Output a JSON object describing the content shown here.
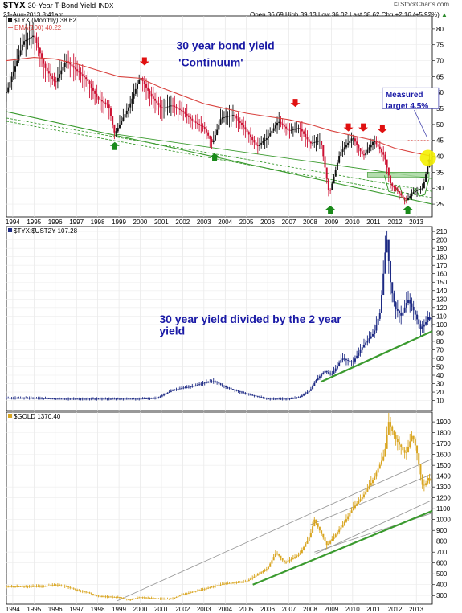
{
  "header": {
    "symbol": "$TYX",
    "name": "30-Year T-Bond Yield",
    "exchange": "INDX",
    "date": "21-Aug-2013 8:41am",
    "quote": "Open 36.69  High 39.13  Low 36.02  Last 38.62  Chg +2.16 (+5.92%)",
    "chg_arrow": "▲",
    "watermark": "© StockCharts.com"
  },
  "colors": {
    "tyx_up": "#111111",
    "tyx_down": "#cc1133",
    "ema": "#d9433f",
    "trend_green": "#3a9a2e",
    "ratio": "#1d2a84",
    "gold": "#d9a520",
    "channel": "#9a9a9a",
    "annotation": "#1a1aa6",
    "highlight": "#f4f000",
    "arrow_red": "#e01010",
    "arrow_green": "#1a8a1a"
  },
  "chart_data": [
    {
      "type": "line",
      "panel": "top",
      "title": "$TYX (Monthly) 38.62",
      "series": [
        {
          "name": "$TYX (Monthly) 38.62",
          "style": "ohlc-bars",
          "x": [
            1993.7,
            1994.5,
            1995.0,
            1995.5,
            1996.0,
            1996.5,
            1997.0,
            1997.5,
            1998.0,
            1998.5,
            1998.8,
            1999.5,
            2000.0,
            2000.5,
            2001.0,
            2001.5,
            2002.0,
            2002.5,
            2003.0,
            2003.4,
            2003.8,
            2004.4,
            2005.0,
            2005.5,
            2006.0,
            2006.5,
            2007.0,
            2007.5,
            2008.0,
            2008.5,
            2008.9,
            2009.4,
            2010.0,
            2010.5,
            2011.0,
            2011.5,
            2011.8,
            2012.0,
            2012.5,
            2012.9,
            2013.3,
            2013.6
          ],
          "values": [
            60,
            76,
            78,
            68,
            63,
            70,
            67,
            64,
            58,
            56,
            47,
            56,
            65,
            59,
            55,
            56,
            54,
            51,
            49,
            44,
            52,
            53,
            48,
            43,
            46,
            51,
            48,
            49,
            44,
            45,
            28,
            41,
            46,
            40,
            45,
            40,
            31,
            30,
            26,
            29,
            30,
            38.6
          ]
        },
        {
          "name": "EMA(100) 40.22",
          "x": [
            1993.7,
            1995.0,
            1996.0,
            1997.0,
            1998.0,
            1999.0,
            2000.0,
            2001.0,
            2002.0,
            2003.0,
            2004.0,
            2005.0,
            2006.0,
            2007.0,
            2008.0,
            2009.0,
            2010.0,
            2011.0,
            2012.0,
            2013.0,
            2013.6
          ],
          "values": [
            70,
            71,
            70.5,
            69,
            67,
            65,
            64.5,
            61.5,
            59,
            56.5,
            55,
            53.5,
            52.5,
            51.5,
            50,
            48,
            46.5,
            45,
            42.5,
            41,
            40.22
          ]
        }
      ],
      "ylim": [
        23,
        83
      ],
      "yticks": [
        25,
        30,
        35,
        40,
        45,
        50,
        55,
        60,
        65,
        70,
        75,
        80
      ],
      "annotations": [
        "30 year bond yield",
        "'Continuum'",
        "Measured",
        "target 4.5%"
      ]
    },
    {
      "type": "line",
      "panel": "middle",
      "title": "$TYX:$UST2Y 107.28",
      "series": [
        {
          "name": "$TYX:$UST2Y 107.28",
          "style": "ohlc-bars",
          "x": [
            1993.7,
            1995.0,
            1996.0,
            1997.0,
            1998.0,
            1999.0,
            2000.0,
            2000.8,
            2001.5,
            2002.0,
            2002.5,
            2003.0,
            2003.5,
            2004.0,
            2004.5,
            2005.0,
            2006.0,
            2007.0,
            2007.5,
            2008.0,
            2008.3,
            2008.7,
            2009.0,
            2009.5,
            2010.0,
            2010.5,
            2011.0,
            2011.3,
            2011.6,
            2011.8,
            2012.0,
            2012.3,
            2012.6,
            2012.9,
            2013.2,
            2013.6
          ],
          "values": [
            13,
            13,
            12,
            12,
            12,
            12,
            12,
            13,
            22,
            25,
            27,
            31,
            33,
            26,
            22,
            18,
            12,
            12,
            14,
            22,
            35,
            45,
            40,
            60,
            55,
            75,
            90,
            115,
            205,
            145,
            120,
            110,
            130,
            115,
            95,
            107.28
          ]
        }
      ],
      "ylim": [
        2,
        212
      ],
      "yticks": [
        10,
        20,
        30,
        40,
        50,
        60,
        70,
        80,
        90,
        100,
        110,
        120,
        130,
        140,
        150,
        160,
        170,
        180,
        190,
        200,
        210
      ],
      "annotations": [
        "30 year yield divided by the 2 year",
        "yield"
      ]
    },
    {
      "type": "line",
      "panel": "bottom",
      "title": "$GOLD 1370.40",
      "series": [
        {
          "name": "$GOLD 1370.40",
          "style": "ohlc-bars",
          "x": [
            1993.7,
            1994.5,
            1995.5,
            1996.0,
            1996.5,
            1997.0,
            1997.5,
            1998.0,
            1999.0,
            1999.5,
            2000.0,
            2001.0,
            2001.5,
            2002.0,
            2003.0,
            2004.0,
            2005.0,
            2006.0,
            2006.4,
            2006.8,
            2007.5,
            2008.0,
            2008.2,
            2008.8,
            2009.5,
            2010.0,
            2010.5,
            2011.0,
            2011.5,
            2011.7,
            2012.0,
            2012.5,
            2012.8,
            2013.0,
            2013.3,
            2013.6
          ],
          "values": [
            380,
            385,
            385,
            400,
            385,
            350,
            330,
            295,
            285,
            260,
            285,
            270,
            270,
            310,
            360,
            410,
            430,
            550,
            700,
            600,
            680,
            850,
            1000,
            760,
            940,
            1100,
            1220,
            1380,
            1600,
            1900,
            1750,
            1600,
            1780,
            1650,
            1300,
            1370.4
          ]
        }
      ],
      "ylim": [
        250,
        1960
      ],
      "yticks": [
        300,
        400,
        500,
        600,
        700,
        800,
        900,
        1000,
        1100,
        1200,
        1300,
        1400,
        1500,
        1600,
        1700,
        1800,
        1900
      ]
    }
  ],
  "axis": {
    "years": [
      "1994",
      "1995",
      "1996",
      "1997",
      "1998",
      "1999",
      "2000",
      "2001",
      "2002",
      "2003",
      "2004",
      "2005",
      "2006",
      "2007",
      "2008",
      "2009",
      "2010",
      "2011",
      "2012",
      "2013"
    ]
  }
}
